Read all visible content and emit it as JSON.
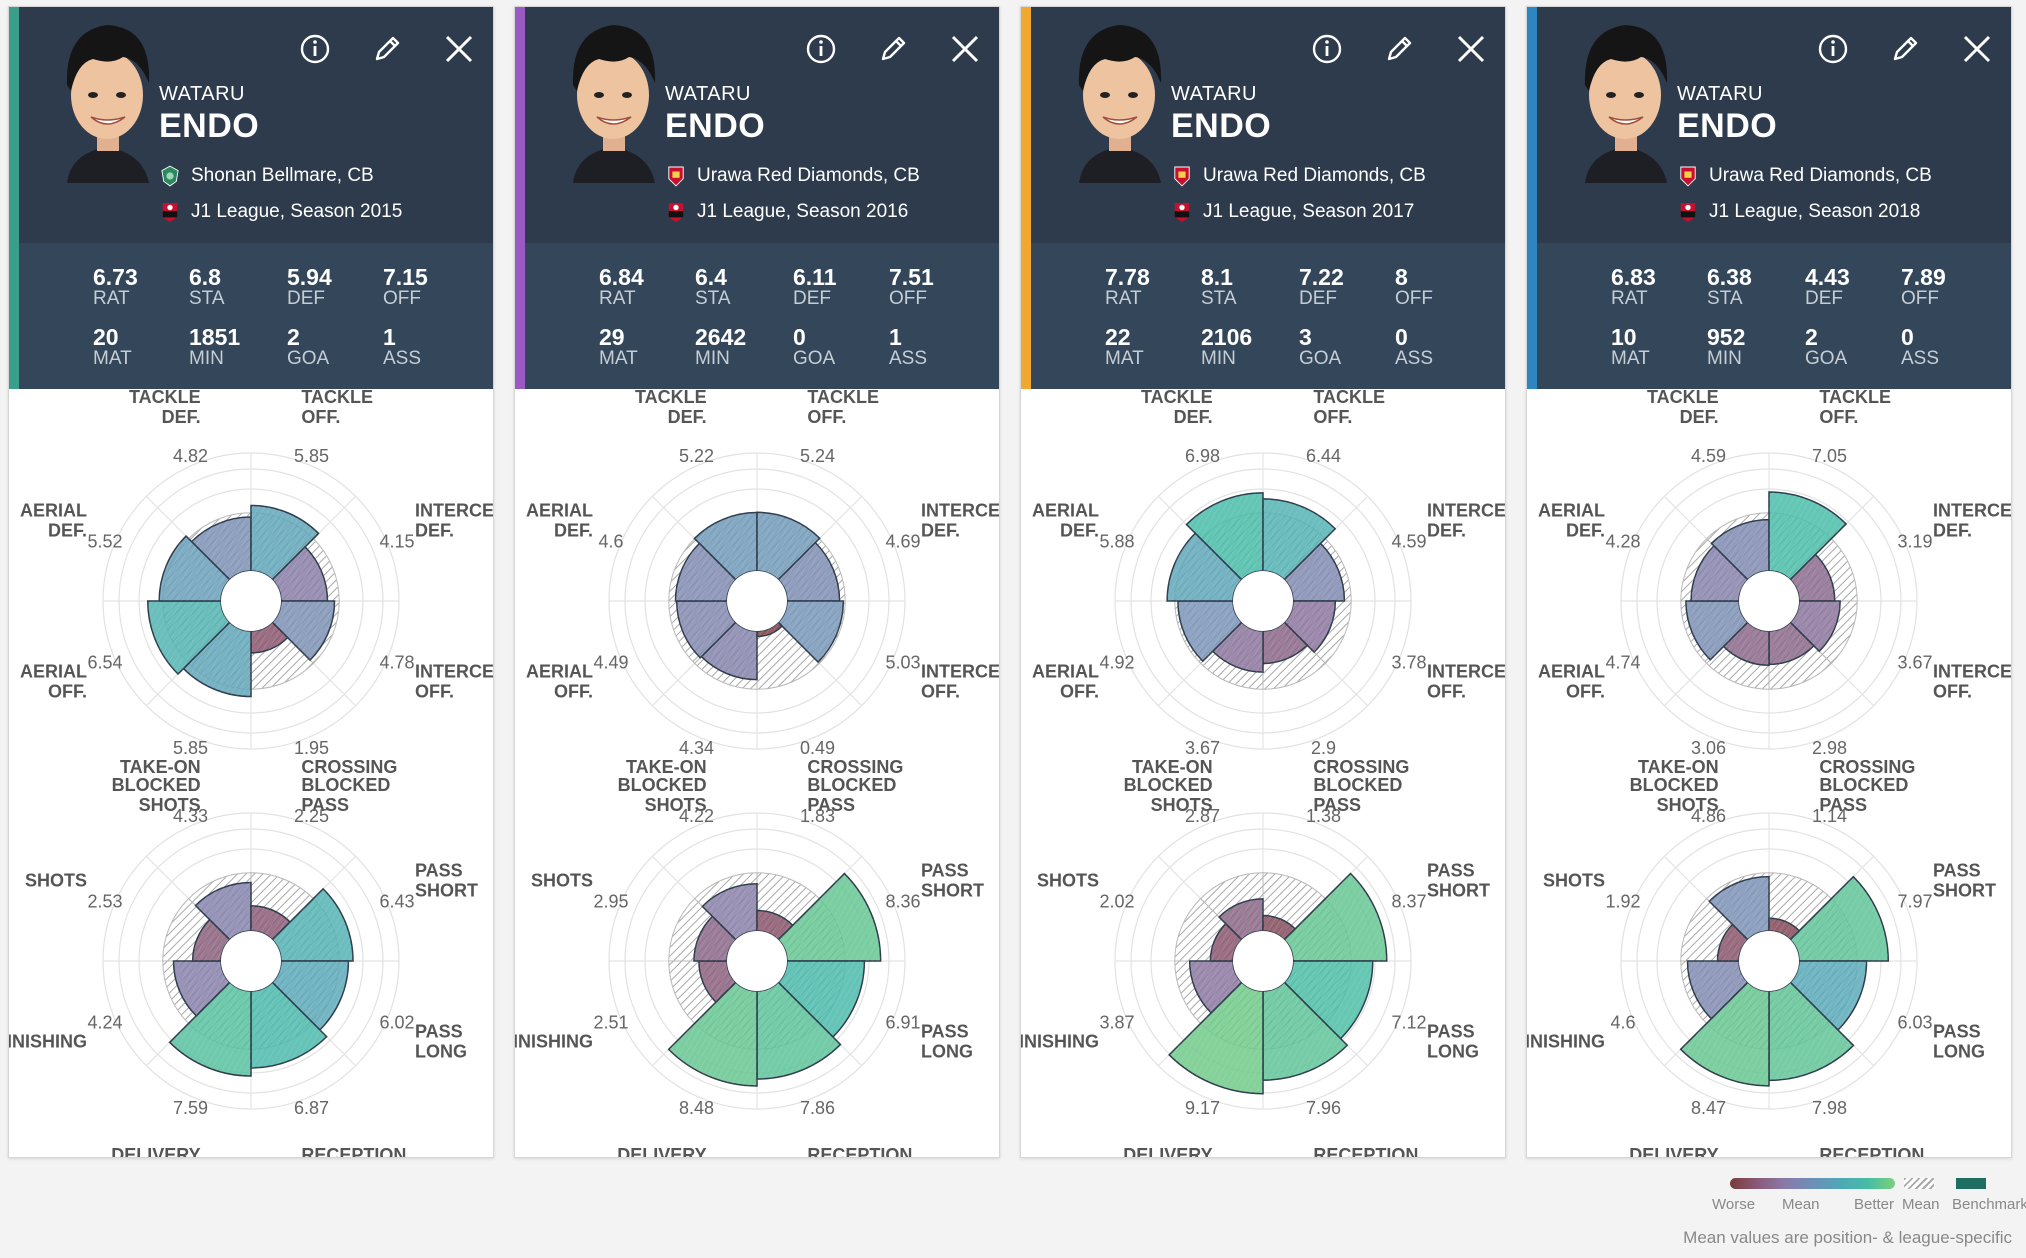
{
  "legend": {
    "worse": "Worse",
    "mean_grad": "Mean",
    "better": "Better",
    "mean": "Mean",
    "benchmark": "Benchmark",
    "note": "Mean values are position- & league-specific"
  },
  "defense_labels": [
    [
      "TACKLE",
      "DEF."
    ],
    [
      "TACKLE",
      "OFF."
    ],
    [
      "INTERCEPT",
      "DEF."
    ],
    [
      "INTERCEPT",
      "OFF."
    ],
    [
      "BLOCKED",
      "PASS"
    ],
    [
      "BLOCKED",
      "SHOTS"
    ],
    [
      "AERIAL",
      "OFF."
    ],
    [
      "AERIAL",
      "DEF."
    ]
  ],
  "offense_labels": [
    [
      "TAKE-ON"
    ],
    [
      "CROSSING"
    ],
    [
      "PASS",
      "SHORT"
    ],
    [
      "PASS",
      "LONG"
    ],
    [
      "RECEPTION"
    ],
    [
      "DELIVERY"
    ],
    [
      "FINISHING"
    ],
    [
      "SHOTS"
    ]
  ],
  "cards": [
    {
      "accent": "#3a9e8a",
      "first_name": "WATARU",
      "last_name": "ENDO",
      "club": "Shonan Bellmare, CB",
      "club_badge": "shonan",
      "league": "J1 League, Season 2015",
      "stats": [
        {
          "value": "6.73",
          "label": "RAT"
        },
        {
          "value": "6.8",
          "label": "STA"
        },
        {
          "value": "5.94",
          "label": "DEF"
        },
        {
          "value": "7.15",
          "label": "OFF"
        },
        {
          "value": "20",
          "label": "MAT"
        },
        {
          "value": "1851",
          "label": "MIN"
        },
        {
          "value": "2",
          "label": "GOA"
        },
        {
          "value": "1",
          "label": "ASS"
        }
      ],
      "defense": [
        "4.82",
        "5.85",
        "4.15",
        "4.78",
        "1.95",
        "5.85",
        "6.54",
        "5.52"
      ],
      "offense": [
        "4.33",
        "2.25",
        "6.43",
        "6.02",
        "6.87",
        "7.59",
        "4.24",
        "2.53"
      ]
    },
    {
      "accent": "#9b59c4",
      "first_name": "WATARU",
      "last_name": "ENDO",
      "club": "Urawa Red Diamonds, CB",
      "club_badge": "urawa",
      "league": "J1 League, Season 2016",
      "stats": [
        {
          "value": "6.84",
          "label": "RAT"
        },
        {
          "value": "6.4",
          "label": "STA"
        },
        {
          "value": "6.11",
          "label": "DEF"
        },
        {
          "value": "7.51",
          "label": "OFF"
        },
        {
          "value": "29",
          "label": "MAT"
        },
        {
          "value": "2642",
          "label": "MIN"
        },
        {
          "value": "0",
          "label": "GOA"
        },
        {
          "value": "1",
          "label": "ASS"
        }
      ],
      "defense": [
        "5.22",
        "5.24",
        "4.69",
        "5.03",
        "0.49",
        "4.34",
        "4.49",
        "4.6"
      ],
      "offense": [
        "4.22",
        "1.83",
        "8.36",
        "6.91",
        "7.86",
        "8.48",
        "2.51",
        "2.95"
      ]
    },
    {
      "accent": "#f0a830",
      "first_name": "WATARU",
      "last_name": "ENDO",
      "club": "Urawa Red Diamonds, CB",
      "club_badge": "urawa",
      "league": "J1 League, Season 2017",
      "stats": [
        {
          "value": "7.78",
          "label": "RAT"
        },
        {
          "value": "8.1",
          "label": "STA"
        },
        {
          "value": "7.22",
          "label": "DEF"
        },
        {
          "value": "8",
          "label": "OFF"
        },
        {
          "value": "22",
          "label": "MAT"
        },
        {
          "value": "2106",
          "label": "MIN"
        },
        {
          "value": "3",
          "label": "GOA"
        },
        {
          "value": "0",
          "label": "ASS"
        }
      ],
      "defense": [
        "6.98",
        "6.44",
        "4.59",
        "3.78",
        "2.9",
        "3.67",
        "4.92",
        "5.88"
      ],
      "offense": [
        "2.87",
        "1.38",
        "8.37",
        "7.12",
        "7.96",
        "9.17",
        "3.87",
        "2.02"
      ]
    },
    {
      "accent": "#2e86c1",
      "first_name": "WATARU",
      "last_name": "ENDO",
      "club": "Urawa Red Diamonds, CB",
      "club_badge": "urawa",
      "league": "J1 League, Season 2018",
      "stats": [
        {
          "value": "6.83",
          "label": "RAT"
        },
        {
          "value": "6.38",
          "label": "STA"
        },
        {
          "value": "4.43",
          "label": "DEF"
        },
        {
          "value": "7.89",
          "label": "OFF"
        },
        {
          "value": "10",
          "label": "MAT"
        },
        {
          "value": "952",
          "label": "MIN"
        },
        {
          "value": "2",
          "label": "GOA"
        },
        {
          "value": "0",
          "label": "ASS"
        }
      ],
      "defense": [
        "4.59",
        "7.05",
        "3.19",
        "3.67",
        "2.98",
        "3.06",
        "4.74",
        "4.28"
      ],
      "offense": [
        "4.86",
        "1.14",
        "7.97",
        "6.03",
        "7.98",
        "8.47",
        "4.6",
        "1.92"
      ]
    }
  ]
}
